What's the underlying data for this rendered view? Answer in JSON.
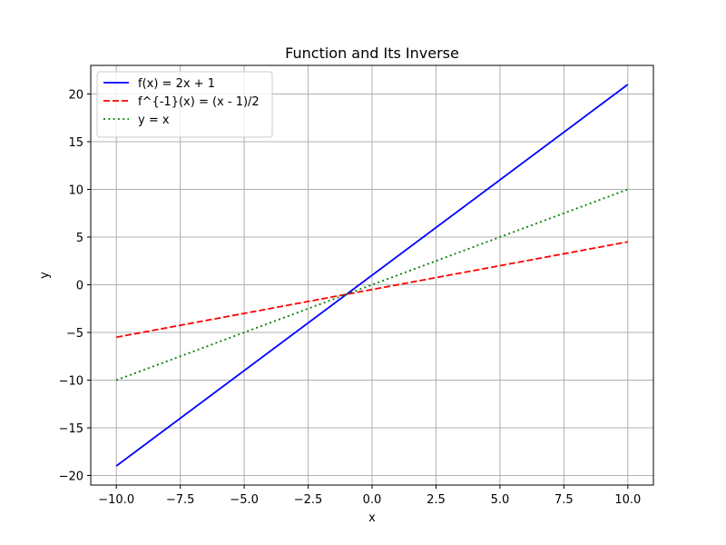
{
  "chart_data": {
    "type": "line",
    "title": "Function and Its Inverse",
    "xlabel": "x",
    "ylabel": "y",
    "xlim": [
      -11,
      11
    ],
    "ylim": [
      -21,
      23
    ],
    "grid": true,
    "legend_position": "top-left",
    "xticks": [
      -10.0,
      -7.5,
      -5.0,
      -2.5,
      0.0,
      2.5,
      5.0,
      7.5,
      10.0
    ],
    "xtick_labels": [
      "−10.0",
      "−7.5",
      "−5.0",
      "−2.5",
      "0.0",
      "2.5",
      "5.0",
      "7.5",
      "10.0"
    ],
    "yticks": [
      -20,
      -15,
      -10,
      -5,
      0,
      5,
      10,
      15,
      20
    ],
    "ytick_labels": [
      "−20",
      "−15",
      "−10",
      "−5",
      "0",
      "5",
      "10",
      "15",
      "20"
    ],
    "series": [
      {
        "name": "f(x) = 2x + 1",
        "color": "#0000ff",
        "style": "solid",
        "x": [
          -10,
          10
        ],
        "y": [
          -19,
          21
        ]
      },
      {
        "name": "f^{-1}(x) = (x - 1)/2",
        "color": "#ff0000",
        "style": "dashed",
        "x": [
          -10,
          10
        ],
        "y": [
          -5.5,
          4.5
        ]
      },
      {
        "name": "y = x",
        "color": "#008000",
        "style": "dotted",
        "x": [
          -10,
          10
        ],
        "y": [
          -10,
          10
        ]
      }
    ]
  }
}
